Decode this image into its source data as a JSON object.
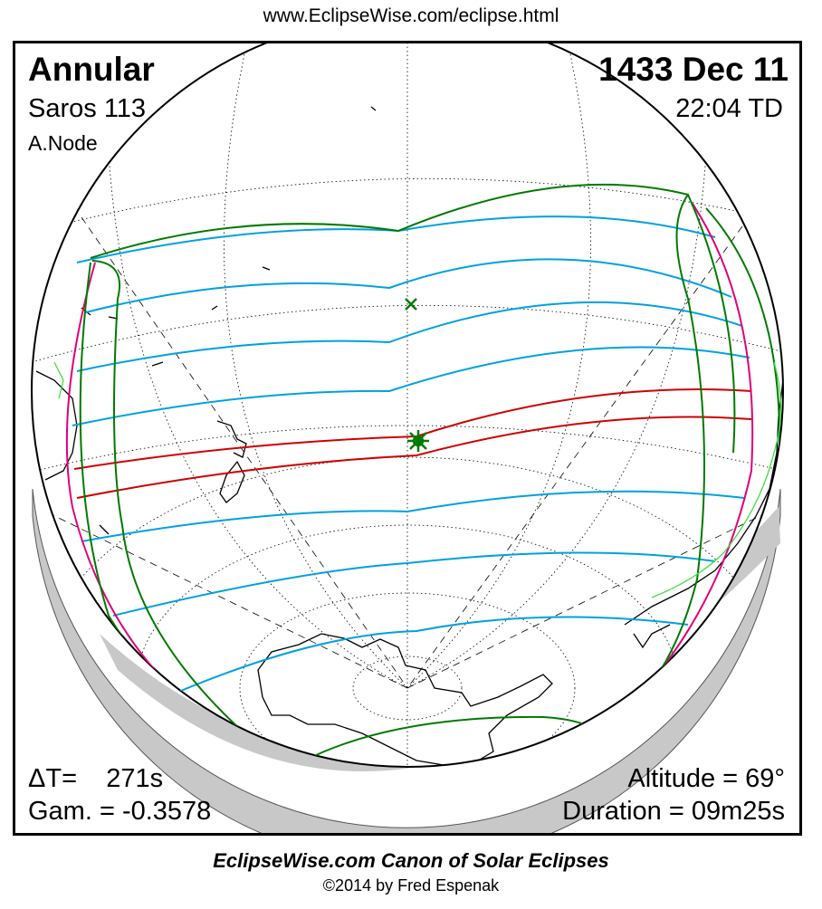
{
  "header": {
    "url": "www.EclipseWise.com/eclipse.html"
  },
  "eclipse": {
    "type": "Annular",
    "saros": "Saros 113",
    "node": "A.Node",
    "date": "1433 Dec 11",
    "time": "22:04 TD",
    "delta_t": "ΔT=    271s",
    "gamma": "Gam. = -0.3578",
    "altitude": "Altitude = 69°",
    "duration": "Duration = 09m25s"
  },
  "footer": {
    "title": "EclipseWise.com Canon of Solar Eclipses",
    "copyright": "©2014 by Fred Espenak"
  },
  "map": {
    "colors": {
      "penumbra_limits": "#007a00",
      "magnitude_curves": "#00a0e0",
      "central_path": "#d00000",
      "rise_set": "#e0007a",
      "coastline": "#000000",
      "graticule": "#000000",
      "night_shadow": "#c8c8c8"
    },
    "markers": {
      "greatest_eclipse": "star-marker",
      "subsolar_point": "x-marker"
    }
  }
}
